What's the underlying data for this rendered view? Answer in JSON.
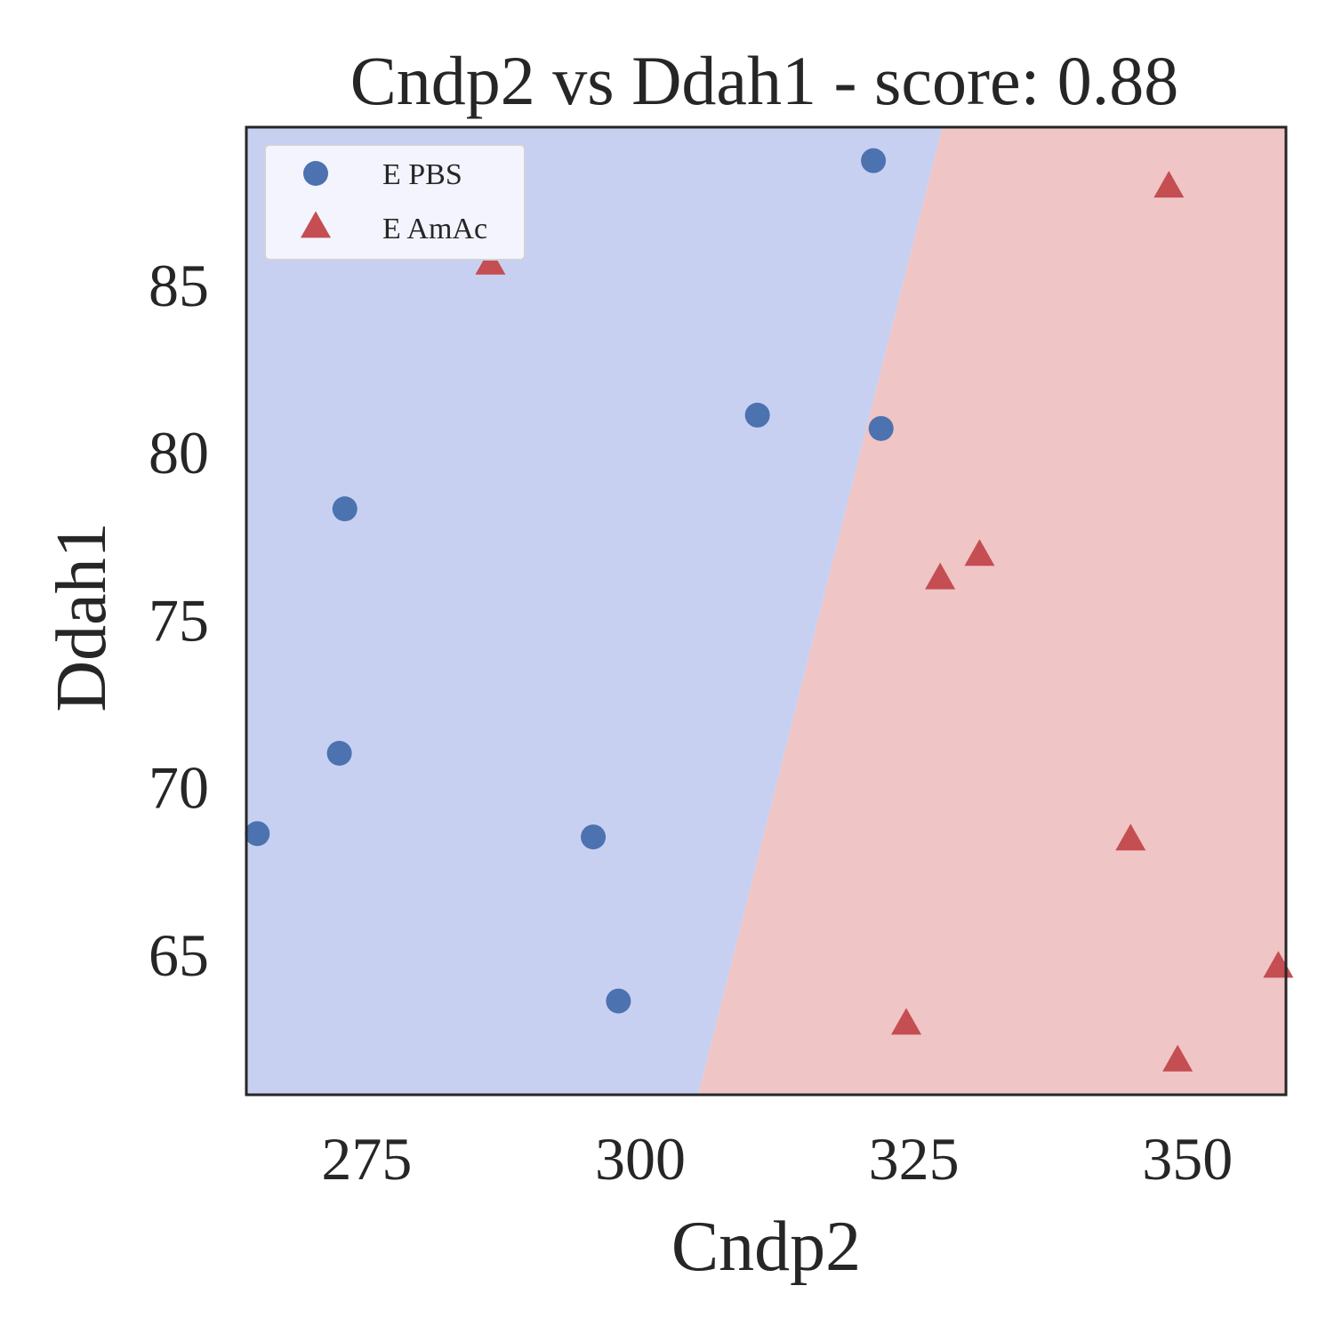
{
  "chart_data": {
    "type": "scatter",
    "title": "Cndp2 vs Ddah1 - score: 0.88",
    "xlabel": "Cndp2",
    "ylabel": "Ddah1",
    "xlim": [
      264,
      359
    ],
    "ylim": [
      60.8,
      89.7
    ],
    "xticks": [
      275,
      300,
      325,
      350
    ],
    "yticks": [
      65,
      70,
      75,
      80,
      85
    ],
    "grid": false,
    "legend_position": "top-left",
    "decision_boundary": {
      "points": [
        [
          305.3,
          60.8
        ],
        [
          327.6,
          89.7
        ]
      ],
      "left_color": "#c8d0f1",
      "right_color": "#efc5c5"
    },
    "series": [
      {
        "name": "E PBS",
        "marker": "circle",
        "color": "#4c72b0",
        "points": [
          [
            265.0,
            68.6
          ],
          [
            272.5,
            71.0
          ],
          [
            273.0,
            78.3
          ],
          [
            295.7,
            68.5
          ],
          [
            298.0,
            63.6
          ],
          [
            310.7,
            81.1
          ],
          [
            321.3,
            88.7
          ],
          [
            322.0,
            80.7
          ]
        ]
      },
      {
        "name": "E AmAc",
        "marker": "triangle",
        "color": "#c44e52",
        "points": [
          [
            286.3,
            85.6
          ],
          [
            324.3,
            62.9
          ],
          [
            327.4,
            76.2
          ],
          [
            331.0,
            76.9
          ],
          [
            344.8,
            68.4
          ],
          [
            348.3,
            87.9
          ],
          [
            349.1,
            61.8
          ],
          [
            358.3,
            64.6
          ]
        ]
      }
    ]
  }
}
